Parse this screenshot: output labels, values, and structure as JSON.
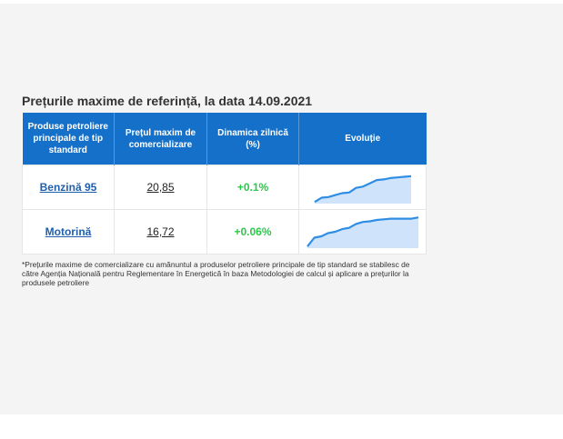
{
  "title": "Prețurile maxime de referință, la data 14.09.2021",
  "table": {
    "headers": [
      "Produse petroliere principale de tip standard",
      "Prețul maxim de comercializare",
      "Dinamica zilnică (%)",
      "Evoluție"
    ],
    "rows": [
      {
        "product": "Benzină 95",
        "price": "20,85",
        "change": "+0.1%",
        "trend": [
          0.05,
          0.18,
          0.2,
          0.26,
          0.32,
          0.34,
          0.48,
          0.52,
          0.62,
          0.72,
          0.74,
          0.78,
          0.8,
          0.82,
          0.84
        ]
      },
      {
        "product": "Motorină",
        "price": "16,72",
        "change": "+0.06%",
        "trend": [
          0.05,
          0.32,
          0.36,
          0.46,
          0.5,
          0.58,
          0.62,
          0.74,
          0.8,
          0.82,
          0.86,
          0.88,
          0.9,
          0.9,
          0.9,
          0.9,
          0.94
        ]
      }
    ]
  },
  "footnote": "*Prețurile maxime de comercializare cu amănuntul a produselor petroliere principale de tip standard se stabilesc de către Agenția Națională pentru Reglementare în Energetică în baza Metodologiei de calcul și aplicare a prețurilor la produsele petroliere",
  "colors": {
    "header_bg": "#1570c9",
    "link": "#1f5fae",
    "positive": "#2cc84a",
    "spark_line": "#2f8de4",
    "spark_fill": "#cfe4fa"
  }
}
